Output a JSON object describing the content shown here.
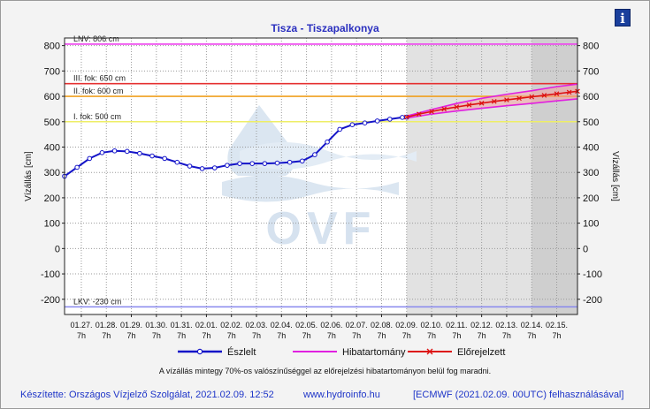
{
  "title": "Tisza - Tiszapalkonya",
  "info_icon_label": "i",
  "footer": {
    "author": "Készítette: Országos Vízjelző Szolgálat, 2021.02.09. 12:52",
    "website": "www.hydroinfo.hu",
    "model": "[ECMWF (2021.02.09. 00UTC) felhasználásával]"
  },
  "note": "A vízállás mintegy 70%-os valószínűséggel az előrejelzési hibatartományon belül fog maradni.",
  "watermark": "OVF",
  "colors": {
    "observed": "#1414c8",
    "error_range": "#e020e0",
    "forecast": "#dd1111",
    "forecast_band": "#f4a0a0",
    "lnv": "#ee44ee",
    "level3": "#e53030",
    "level2": "#f0a020",
    "level1": "#eeee66",
    "lkv": "#8888ee",
    "forecast_area": "#e2e2e2"
  },
  "chart_data": {
    "type": "line",
    "ylabel": "Vízállás [cm]",
    "ylim": [
      -260,
      830
    ],
    "yticks": [
      -200,
      -100,
      0,
      100,
      200,
      300,
      400,
      500,
      600,
      700,
      800
    ],
    "x_range": [
      0,
      20.5
    ],
    "forecast_start": 13.67,
    "forecast_dark_start": 18.67,
    "x_ticks": [
      {
        "x": 0.67,
        "date": "01.27.",
        "hour": "7h"
      },
      {
        "x": 1.67,
        "date": "01.28.",
        "hour": "7h"
      },
      {
        "x": 2.67,
        "date": "01.29.",
        "hour": "7h"
      },
      {
        "x": 3.67,
        "date": "01.30.",
        "hour": "7h"
      },
      {
        "x": 4.67,
        "date": "01.31.",
        "hour": "7h"
      },
      {
        "x": 5.67,
        "date": "02.01.",
        "hour": "7h"
      },
      {
        "x": 6.67,
        "date": "02.02.",
        "hour": "7h"
      },
      {
        "x": 7.67,
        "date": "02.03.",
        "hour": "7h"
      },
      {
        "x": 8.67,
        "date": "02.04.",
        "hour": "7h"
      },
      {
        "x": 9.67,
        "date": "02.05.",
        "hour": "7h"
      },
      {
        "x": 10.67,
        "date": "02.06.",
        "hour": "7h"
      },
      {
        "x": 11.67,
        "date": "02.07.",
        "hour": "7h"
      },
      {
        "x": 12.67,
        "date": "02.08.",
        "hour": "7h"
      },
      {
        "x": 13.67,
        "date": "02.09.",
        "hour": "7h"
      },
      {
        "x": 14.67,
        "date": "02.10.",
        "hour": "7h"
      },
      {
        "x": 15.67,
        "date": "02.11.",
        "hour": "7h"
      },
      {
        "x": 16.67,
        "date": "02.12.",
        "hour": "7h"
      },
      {
        "x": 17.67,
        "date": "02.13.",
        "hour": "7h"
      },
      {
        "x": 18.67,
        "date": "02.14.",
        "hour": "7h"
      },
      {
        "x": 19.67,
        "date": "02.15.",
        "hour": "7h"
      }
    ],
    "thresholds": [
      {
        "label": "LNV: 806 cm",
        "value": 806,
        "color": "#ee44ee"
      },
      {
        "label": "III. fok: 650 cm",
        "value": 650,
        "color": "#e53030"
      },
      {
        "label": "II. fok: 600 cm",
        "value": 600,
        "color": "#f0a020"
      },
      {
        "label": "I. fok: 500 cm",
        "value": 500,
        "color": "#eeee66"
      },
      {
        "label": "LKV: -230 cm",
        "value": -230,
        "color": "#8888ee"
      }
    ],
    "series": [
      {
        "name": "Észlelt",
        "x": [
          0,
          0.5,
          1,
          1.5,
          2,
          2.5,
          3,
          3.5,
          4,
          4.5,
          5,
          5.5,
          6,
          6.5,
          7,
          7.5,
          8,
          8.5,
          9,
          9.5,
          10,
          10.5,
          11,
          11.5,
          12,
          12.5,
          13,
          13.5,
          13.67
        ],
        "values": [
          285,
          320,
          355,
          378,
          385,
          383,
          375,
          365,
          355,
          340,
          325,
          315,
          318,
          328,
          335,
          335,
          335,
          337,
          340,
          345,
          370,
          420,
          470,
          488,
          495,
          503,
          510,
          517,
          518
        ]
      },
      {
        "name": "Előrejelzett",
        "x": [
          13.67,
          14.17,
          14.67,
          15.17,
          15.67,
          16.17,
          16.67,
          17.17,
          17.67,
          18.17,
          18.67,
          19.17,
          19.67,
          20.17,
          20.5
        ],
        "values": [
          518,
          530,
          540,
          550,
          558,
          566,
          573,
          580,
          586,
          592,
          598,
          604,
          610,
          616,
          620
        ]
      }
    ],
    "error_band": {
      "name": "Hibatartomány",
      "x": [
        13.67,
        14.67,
        15.67,
        16.67,
        17.67,
        18.67,
        19.67,
        20.5
      ],
      "upper": [
        522,
        548,
        572,
        592,
        608,
        622,
        638,
        648
      ],
      "lower": [
        514,
        530,
        542,
        553,
        563,
        572,
        582,
        590
      ]
    },
    "legend": [
      {
        "name": "Észlelt",
        "color": "#1414c8",
        "marker": "circle"
      },
      {
        "name": "Hibatartomány",
        "color": "#e020e0",
        "marker": "none"
      },
      {
        "name": "Előrejelzett",
        "color": "#dd1111",
        "marker": "cross"
      }
    ],
    "legend_position": "bottom"
  }
}
